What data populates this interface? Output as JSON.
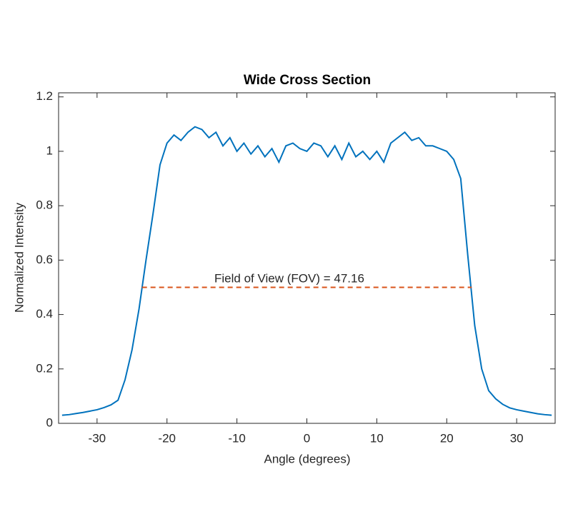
{
  "chart_data": {
    "type": "line",
    "title": "Wide Cross Section",
    "xlabel": "Angle (degrees)",
    "ylabel": "Normalized Intensity",
    "annotation": "Field of View (FOV) = 47.16",
    "xlim": [
      -35.5,
      35.5
    ],
    "xticks": [
      -30,
      -20,
      -10,
      0,
      10,
      20,
      30
    ],
    "ylim": [
      0,
      1.215
    ],
    "yticks": [
      0,
      0.2,
      0.4,
      0.6,
      0.8,
      1,
      1.2
    ],
    "series": [
      {
        "name": "Intensity",
        "color": "#0072BD",
        "style": "solid",
        "x": [
          -35,
          -34,
          -33,
          -32,
          -31,
          -30,
          -29,
          -28,
          -27,
          -26,
          -25,
          -24,
          -23,
          -22,
          -21,
          -20,
          -19,
          -18,
          -17,
          -16,
          -15,
          -14,
          -13,
          -12,
          -11,
          -10,
          -9,
          -8,
          -7,
          -6,
          -5,
          -4,
          -3,
          -2,
          -1,
          0,
          1,
          2,
          3,
          4,
          5,
          6,
          7,
          8,
          9,
          10,
          11,
          12,
          13,
          14,
          15,
          16,
          17,
          18,
          19,
          20,
          21,
          22,
          23,
          24,
          25,
          26,
          27,
          28,
          29,
          30,
          31,
          32,
          33,
          34,
          35
        ],
        "values": [
          0.03,
          0.032,
          0.036,
          0.04,
          0.045,
          0.05,
          0.058,
          0.068,
          0.085,
          0.16,
          0.27,
          0.42,
          0.6,
          0.77,
          0.95,
          1.03,
          1.06,
          1.04,
          1.07,
          1.09,
          1.08,
          1.05,
          1.07,
          1.02,
          1.05,
          1.0,
          1.03,
          0.99,
          1.02,
          0.98,
          1.01,
          0.96,
          1.02,
          1.03,
          1.01,
          1.0,
          1.03,
          1.02,
          0.98,
          1.02,
          0.97,
          1.03,
          0.98,
          1.0,
          0.97,
          1.0,
          0.96,
          1.03,
          1.05,
          1.07,
          1.04,
          1.05,
          1.02,
          1.02,
          1.01,
          1.0,
          0.97,
          0.9,
          0.62,
          0.36,
          0.2,
          0.12,
          0.09,
          0.07,
          0.057,
          0.05,
          0.045,
          0.04,
          0.035,
          0.032,
          0.03
        ]
      },
      {
        "name": "FOV",
        "color": "#D95319",
        "style": "dashed",
        "x": [
          -23.58,
          23.58
        ],
        "values": [
          0.5,
          0.5
        ]
      }
    ]
  }
}
